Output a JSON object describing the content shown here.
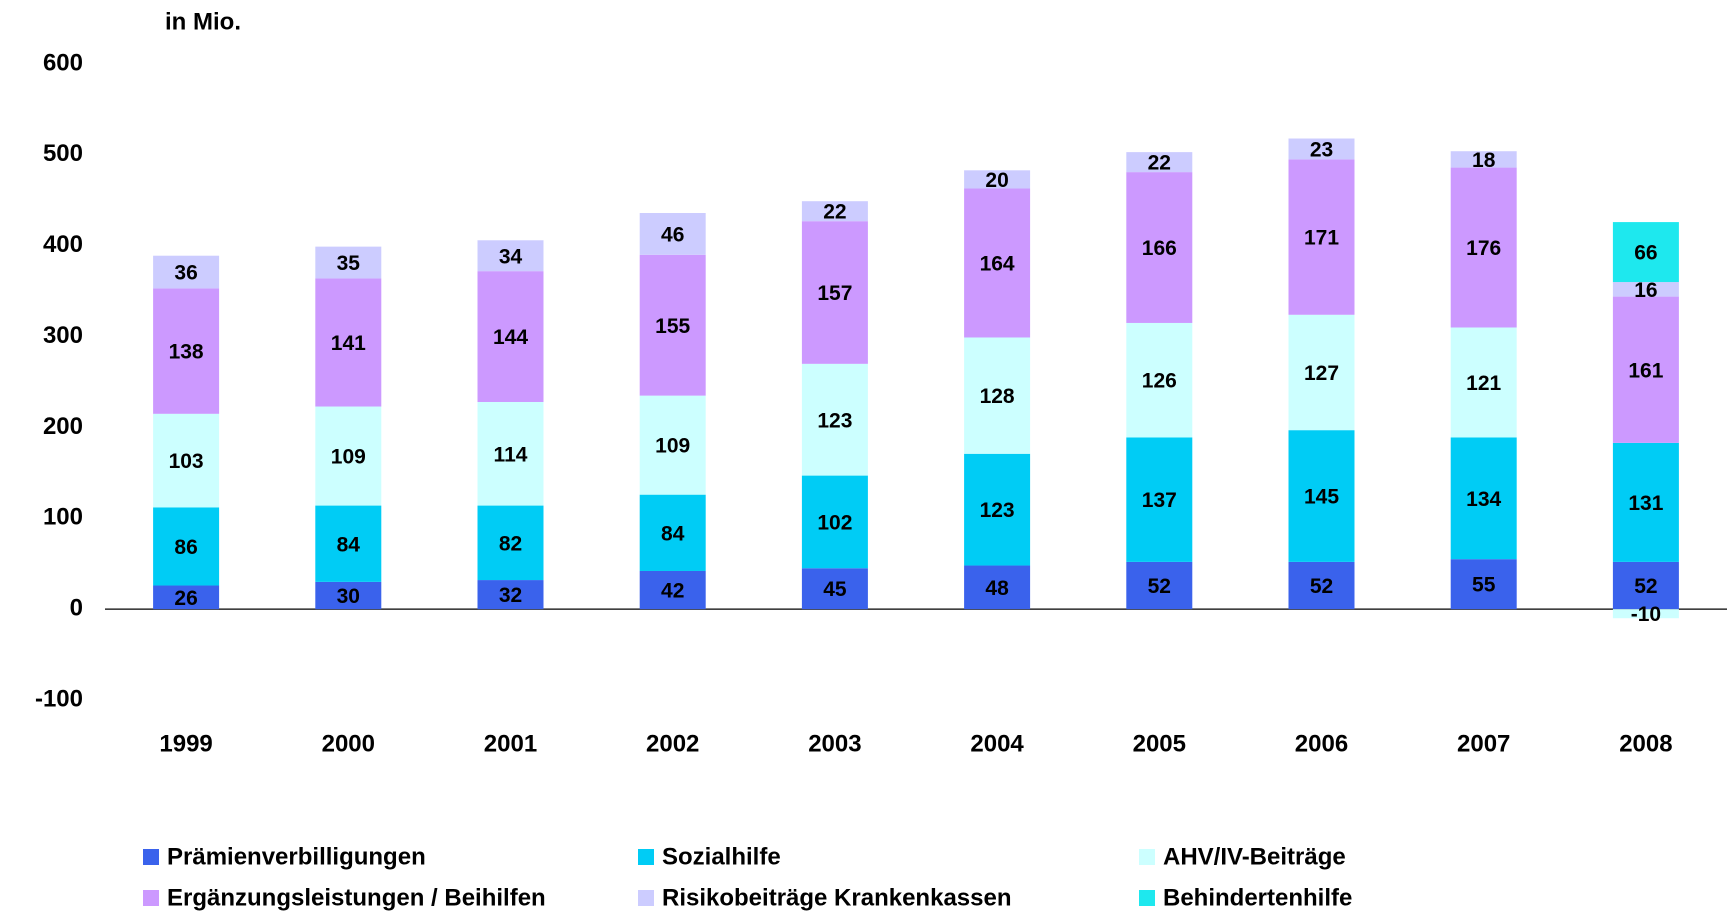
{
  "chart_data": {
    "type": "stacked_bar",
    "title": "in Mio.",
    "categories": [
      "1999",
      "2000",
      "2001",
      "2002",
      "2003",
      "2004",
      "2005",
      "2006",
      "2007",
      "2008"
    ],
    "series": [
      {
        "name": "Prämienverbilligungen",
        "color": "#3a62ec",
        "values": [
          26,
          30,
          32,
          42,
          45,
          48,
          52,
          52,
          55,
          52
        ]
      },
      {
        "name": "Sozialhilfe",
        "color": "#00ccf5",
        "values": [
          86,
          84,
          82,
          84,
          102,
          123,
          137,
          145,
          134,
          131
        ]
      },
      {
        "name": "AHV/IV-Beiträge",
        "color": "#ccffff",
        "values": [
          103,
          109,
          114,
          109,
          123,
          128,
          126,
          127,
          121,
          -10
        ]
      },
      {
        "name": "Ergänzungsleistungen / Beihilfen",
        "color": "#cc99ff",
        "values": [
          138,
          141,
          144,
          155,
          157,
          164,
          166,
          171,
          176,
          161
        ]
      },
      {
        "name": "Risikobeiträge Krankenkassen",
        "color": "#ccccff",
        "values": [
          36,
          35,
          34,
          46,
          22,
          20,
          22,
          23,
          18,
          16
        ]
      },
      {
        "name": "Behindertenhilfe",
        "color": "#1ee8ee",
        "values": [
          null,
          null,
          null,
          null,
          null,
          null,
          null,
          null,
          null,
          66
        ]
      }
    ],
    "ylim": [
      -100,
      600
    ],
    "yticks": [
      -100,
      0,
      100,
      200,
      300,
      400,
      500,
      600
    ],
    "grid": false
  }
}
